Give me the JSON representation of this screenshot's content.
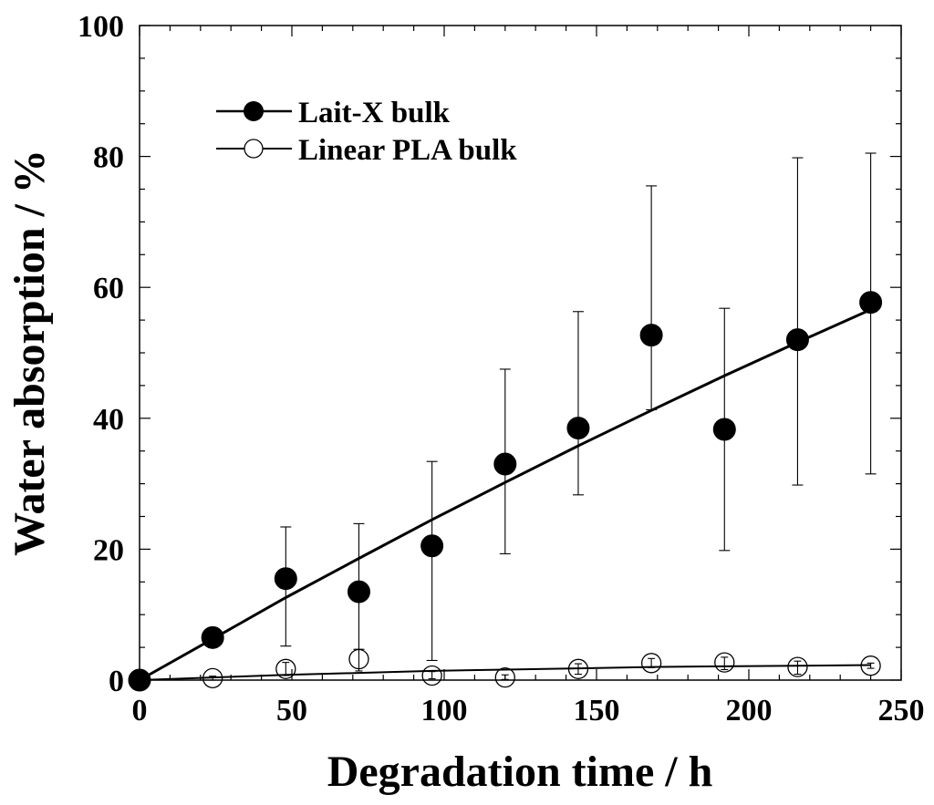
{
  "chart_data": {
    "type": "scatter",
    "xlabel": "Degradation time / h",
    "ylabel": "Water absorption / %",
    "xlim": [
      0,
      250
    ],
    "ylim": [
      0,
      100
    ],
    "xticks": [
      0,
      50,
      100,
      150,
      200,
      250
    ],
    "yticks": [
      0,
      20,
      40,
      60,
      80,
      100
    ],
    "xtick_labels": [
      "0",
      "50",
      "100",
      "150",
      "200",
      "250"
    ],
    "ytick_labels": [
      "0",
      "20",
      "40",
      "60",
      "80",
      "100"
    ],
    "grid": false,
    "legend_position": "top-left",
    "series": [
      {
        "name": "Lait-X bulk",
        "marker": "filled-circle",
        "color": "#000000",
        "x": [
          0,
          24,
          48,
          72,
          96,
          120,
          144,
          168,
          192,
          216,
          240
        ],
        "y": [
          0,
          6.5,
          15.5,
          13.5,
          20.5,
          33,
          38.5,
          52.7,
          38.3,
          52,
          57.7
        ],
        "err_low": [
          0,
          6.5,
          5.2,
          4.7,
          3.0,
          19.3,
          28.3,
          41.3,
          19.8,
          29.8,
          31.5
        ],
        "err_high": [
          0,
          6.5,
          23.4,
          23.9,
          33.4,
          47.5,
          56.3,
          75.5,
          56.8,
          79.8,
          80.5
        ],
        "fit_x": [
          0,
          24,
          48,
          72,
          96,
          120,
          144,
          168,
          192,
          216,
          240
        ],
        "fit_y": [
          0,
          6.3,
          12.6,
          18.6,
          24.5,
          30.2,
          35.8,
          41.2,
          46.5,
          51.6,
          56.6
        ]
      },
      {
        "name": "Linear PLA bulk",
        "marker": "open-circle",
        "color": "#000000",
        "x": [
          0,
          24,
          48,
          72,
          96,
          120,
          144,
          168,
          192,
          216,
          240
        ],
        "y": [
          0,
          0.3,
          1.7,
          3.2,
          0.7,
          0.4,
          1.7,
          2.6,
          2.7,
          2.0,
          2.2
        ],
        "err_low": [
          0,
          0.0,
          0.7,
          1.4,
          0.2,
          0.1,
          0.9,
          1.9,
          1.6,
          0.9,
          1.8
        ],
        "err_high": [
          0,
          0.6,
          2.7,
          4.7,
          1.3,
          0.8,
          2.5,
          3.3,
          3.5,
          2.9,
          2.6
        ],
        "fit_x": [
          0,
          24,
          48,
          72,
          96,
          120,
          144,
          168,
          192,
          216,
          240
        ],
        "fit_y": [
          0,
          0.4,
          0.8,
          1.1,
          1.4,
          1.6,
          1.8,
          2.0,
          2.1,
          2.2,
          2.3
        ]
      }
    ]
  }
}
